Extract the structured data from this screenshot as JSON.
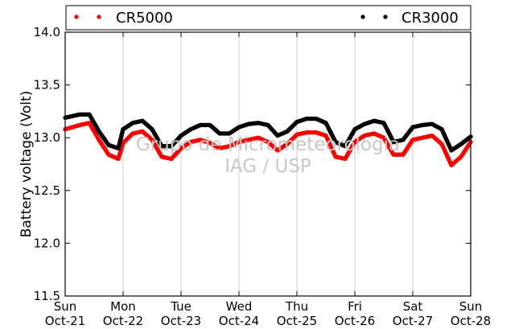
{
  "chart_data": {
    "type": "scatter",
    "title": "",
    "ylabel": "Battery voltage (Volt)",
    "xlabel": "",
    "ylim": [
      11.5,
      14.0
    ],
    "yticks": [
      11.5,
      12.0,
      12.5,
      13.0,
      13.5,
      14.0
    ],
    "ytick_labels": [
      "11.5",
      "12.0",
      "12.5",
      "13.0",
      "13.5",
      "14.0"
    ],
    "xlim": [
      "2016-10-21",
      "2016-10-28"
    ],
    "xticks": [
      {
        "day": "Sun",
        "date": "Oct-21"
      },
      {
        "day": "Mon",
        "date": "Oct-22"
      },
      {
        "day": "Tue",
        "date": "Oct-23"
      },
      {
        "day": "Wed",
        "date": "Oct-24"
      },
      {
        "day": "Thu",
        "date": "Oct-25"
      },
      {
        "day": "Fri",
        "date": "Oct-26"
      },
      {
        "day": "Sat",
        "date": "Oct-27"
      },
      {
        "day": "Sun",
        "date": "Oct-28"
      }
    ],
    "grid": "x",
    "legend_placement": "top",
    "watermark": [
      "Grupo de Micrometeorologia",
      "IAG / USP"
    ],
    "series": [
      {
        "name": "CR5000",
        "color": "#ff0000",
        "x": [
          "2016-10-21 00:00",
          "2016-10-21 06:00",
          "2016-10-21 10:00",
          "2016-10-21 14:00",
          "2016-10-21 18:00",
          "2016-10-21 22:00",
          "2016-10-22 00:00",
          "2016-10-22 04:00",
          "2016-10-22 08:00",
          "2016-10-22 12:00",
          "2016-10-22 16:00",
          "2016-10-22 20:00",
          "2016-10-23 00:00",
          "2016-10-23 04:00",
          "2016-10-23 08:00",
          "2016-10-23 12:00",
          "2016-10-23 16:00",
          "2016-10-23 20:00",
          "2016-10-24 00:00",
          "2016-10-24 04:00",
          "2016-10-24 08:00",
          "2016-10-24 12:00",
          "2016-10-24 16:00",
          "2016-10-24 20:00",
          "2016-10-25 00:00",
          "2016-10-25 04:00",
          "2016-10-25 08:00",
          "2016-10-25 12:00",
          "2016-10-25 16:00",
          "2016-10-25 20:00",
          "2016-10-26 00:00",
          "2016-10-26 04:00",
          "2016-10-26 08:00",
          "2016-10-26 12:00",
          "2016-10-26 16:00",
          "2016-10-26 20:00",
          "2016-10-27 00:00",
          "2016-10-27 04:00",
          "2016-10-27 08:00",
          "2016-10-27 12:00",
          "2016-10-27 16:00",
          "2016-10-27 20:00",
          "2016-10-28 00:00"
        ],
        "y": [
          13.08,
          13.12,
          13.14,
          12.98,
          12.84,
          12.8,
          12.95,
          13.04,
          13.06,
          12.98,
          12.82,
          12.8,
          12.9,
          12.96,
          12.98,
          12.95,
          12.9,
          12.92,
          12.96,
          12.98,
          13.0,
          12.96,
          12.88,
          12.94,
          13.03,
          13.05,
          13.05,
          13.02,
          12.82,
          12.8,
          12.96,
          13.02,
          13.04,
          13.0,
          12.84,
          12.84,
          12.98,
          13.0,
          13.02,
          12.94,
          12.74,
          12.82,
          12.96
        ]
      },
      {
        "name": "CR3000",
        "color": "#000000",
        "x": [
          "2016-10-21 00:00",
          "2016-10-21 06:00",
          "2016-10-21 10:00",
          "2016-10-21 14:00",
          "2016-10-21 18:00",
          "2016-10-21 22:00",
          "2016-10-22 00:00",
          "2016-10-22 04:00",
          "2016-10-22 08:00",
          "2016-10-22 12:00",
          "2016-10-22 16:00",
          "2016-10-22 20:00",
          "2016-10-23 00:00",
          "2016-10-23 04:00",
          "2016-10-23 08:00",
          "2016-10-23 12:00",
          "2016-10-23 16:00",
          "2016-10-23 20:00",
          "2016-10-24 00:00",
          "2016-10-24 04:00",
          "2016-10-24 08:00",
          "2016-10-24 12:00",
          "2016-10-24 16:00",
          "2016-10-24 20:00",
          "2016-10-25 00:00",
          "2016-10-25 04:00",
          "2016-10-25 08:00",
          "2016-10-25 12:00",
          "2016-10-25 16:00",
          "2016-10-25 20:00",
          "2016-10-26 00:00",
          "2016-10-26 04:00",
          "2016-10-26 08:00",
          "2016-10-26 12:00",
          "2016-10-26 16:00",
          "2016-10-26 20:00",
          "2016-10-27 00:00",
          "2016-10-27 04:00",
          "2016-10-27 08:00",
          "2016-10-27 12:00",
          "2016-10-27 16:00",
          "2016-10-27 20:00",
          "2016-10-28 00:00"
        ],
        "y": [
          13.19,
          13.22,
          13.22,
          13.06,
          12.93,
          12.9,
          13.08,
          13.14,
          13.16,
          13.08,
          12.92,
          12.92,
          13.02,
          13.08,
          13.12,
          13.12,
          13.04,
          13.04,
          13.1,
          13.13,
          13.14,
          13.12,
          13.02,
          13.06,
          13.15,
          13.18,
          13.18,
          13.14,
          12.96,
          12.92,
          13.08,
          13.13,
          13.16,
          13.14,
          12.96,
          12.98,
          13.1,
          13.12,
          13.13,
          13.08,
          12.88,
          12.94,
          13.01
        ]
      }
    ]
  }
}
